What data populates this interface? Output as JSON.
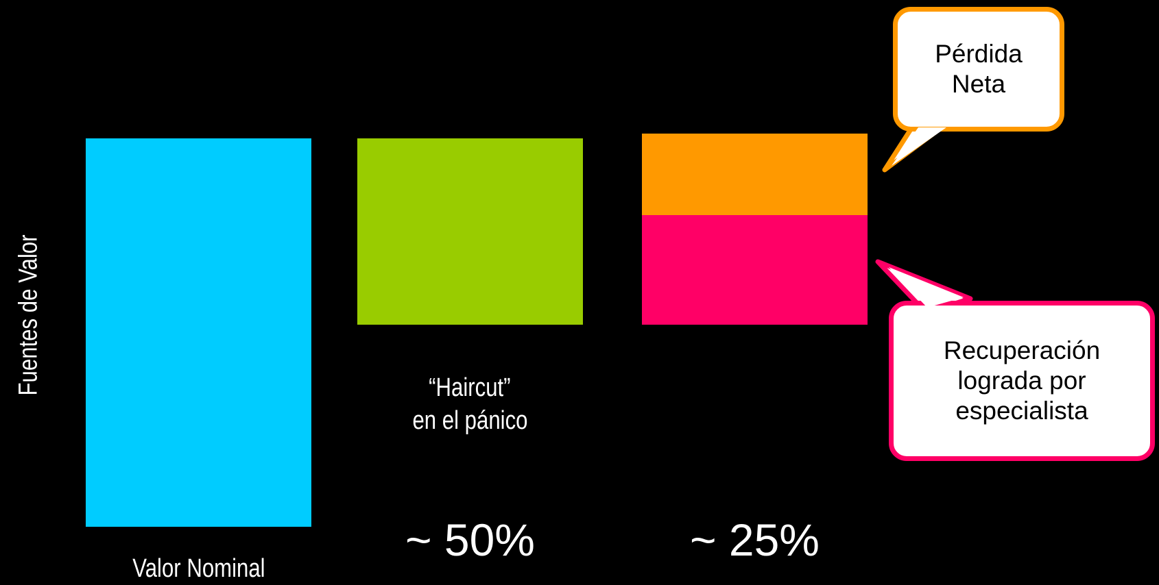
{
  "colors": {
    "background": "#000000",
    "nominal": "#00ccff",
    "haircut": "#99cc00",
    "net_loss": "#ff9900",
    "recovery": "#ff0066",
    "text": "#ffffff"
  },
  "y_axis_label": "Fuentes de Valor",
  "bars": {
    "nominal": {
      "caption": "Valor Nominal"
    },
    "haircut": {
      "caption_line1": "“Haircut”",
      "caption_line2": "en el pánico",
      "percent": "~ 50%"
    },
    "specialist": {
      "percent": "~ 25%"
    }
  },
  "callouts": {
    "net_loss": {
      "line1": "Pérdida",
      "line2": "Neta"
    },
    "recovery": {
      "line1": "Recuperación",
      "line2": "lograda por",
      "line3": "especialista"
    }
  }
}
